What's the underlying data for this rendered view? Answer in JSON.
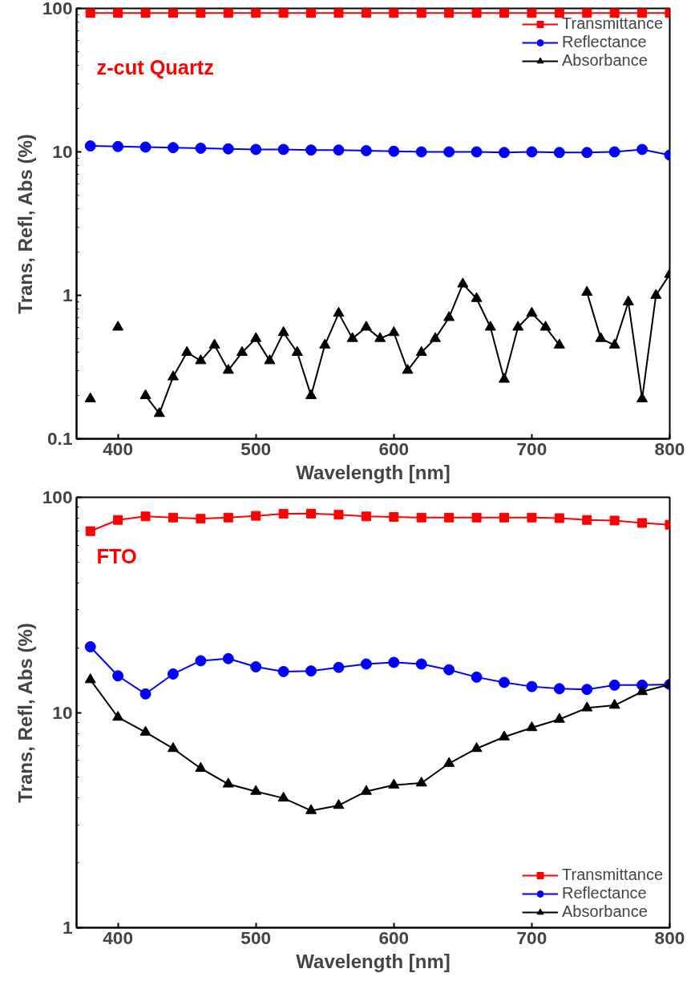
{
  "chart_data": [
    {
      "type": "line",
      "log": "y",
      "grid": false,
      "legend": "top right",
      "xlabel": "Wavelength [nm]",
      "ylabel": "Trans, Refl, Abs (%)",
      "annotations": [
        "z-cut Quartz"
      ],
      "xlim": [
        370,
        800
      ],
      "xticks": [
        400,
        500,
        600,
        700,
        800
      ],
      "ylim": [
        0.1,
        100
      ],
      "yticks": [
        0.1,
        1,
        10,
        100
      ],
      "line_style": "solid",
      "series": [
        {
          "name": "Transmittance",
          "color": "#ff0000",
          "marker": "square",
          "x": [
            380,
            400,
            420,
            440,
            460,
            480,
            500,
            520,
            540,
            560,
            580,
            600,
            620,
            640,
            660,
            680,
            700,
            720,
            740,
            760,
            780,
            800
          ],
          "values": [
            93,
            93,
            93,
            93,
            93,
            93,
            93,
            93,
            93,
            93,
            93,
            93,
            93,
            93,
            93,
            93,
            93,
            93,
            93,
            93,
            93,
            93
          ]
        },
        {
          "name": "Reflectance",
          "color": "#0000ff",
          "marker": "circle",
          "x": [
            380,
            400,
            420,
            440,
            460,
            480,
            500,
            520,
            540,
            560,
            580,
            600,
            620,
            640,
            660,
            680,
            700,
            720,
            740,
            760,
            780,
            800
          ],
          "values": [
            11.0,
            10.9,
            10.8,
            10.7,
            10.6,
            10.5,
            10.4,
            10.4,
            10.3,
            10.3,
            10.2,
            10.1,
            10.0,
            10.0,
            10.0,
            9.9,
            10.0,
            9.9,
            9.9,
            10.0,
            10.4,
            9.5
          ]
        },
        {
          "name": "Absorbance",
          "color": "#000000",
          "marker": "triangle",
          "x": [
            380,
            390,
            400,
            410,
            420,
            430,
            440,
            450,
            460,
            470,
            480,
            490,
            500,
            510,
            520,
            530,
            540,
            550,
            560,
            570,
            580,
            590,
            600,
            610,
            620,
            630,
            640,
            650,
            660,
            670,
            680,
            690,
            700,
            710,
            720,
            730,
            740,
            750,
            760,
            770,
            780,
            790,
            800
          ],
          "values": [
            0.19,
            null,
            0.6,
            null,
            0.2,
            0.15,
            0.27,
            0.4,
            0.35,
            0.45,
            0.3,
            0.4,
            0.5,
            0.35,
            0.55,
            0.4,
            0.2,
            0.45,
            0.75,
            0.5,
            0.6,
            0.5,
            0.55,
            0.3,
            0.4,
            0.5,
            0.7,
            1.2,
            0.95,
            0.6,
            0.26,
            0.6,
            0.75,
            0.6,
            0.45,
            null,
            1.05,
            0.5,
            0.45,
            0.9,
            0.19,
            1.0,
            1.4
          ]
        }
      ]
    },
    {
      "type": "line",
      "log": "y",
      "grid": false,
      "legend": "bottom right",
      "xlabel": "Wavelength [nm]",
      "ylabel": "Trans, Refl, Abs (%)",
      "annotations": [
        "FTO"
      ],
      "xlim": [
        370,
        800
      ],
      "xticks": [
        400,
        500,
        600,
        700,
        800
      ],
      "ylim": [
        1,
        100
      ],
      "yticks": [
        1,
        10,
        100
      ],
      "line_style": "solid",
      "series": [
        {
          "name": "Transmittance",
          "color": "#ff0000",
          "marker": "square",
          "x": [
            380,
            400,
            420,
            440,
            460,
            480,
            500,
            520,
            540,
            560,
            580,
            600,
            620,
            640,
            660,
            680,
            700,
            720,
            740,
            760,
            780,
            800
          ],
          "values": [
            69.6,
            78.5,
            81.5,
            80.5,
            79.5,
            80.5,
            82,
            83.8,
            84,
            83,
            81.5,
            81,
            80.5,
            80.5,
            80.5,
            80.5,
            80.5,
            80,
            78.5,
            78,
            76,
            74.6
          ]
        },
        {
          "name": "Reflectance",
          "color": "#0000ff",
          "marker": "circle",
          "x": [
            380,
            400,
            420,
            440,
            460,
            480,
            500,
            520,
            540,
            560,
            580,
            600,
            620,
            640,
            660,
            680,
            700,
            720,
            740,
            760,
            780,
            800
          ],
          "values": [
            20.2,
            14.8,
            12.2,
            15.1,
            17.4,
            17.8,
            16.3,
            15.5,
            15.6,
            16.2,
            16.8,
            17.1,
            16.8,
            15.8,
            14.6,
            13.8,
            13.2,
            12.9,
            12.8,
            13.4,
            13.4,
            13.5
          ]
        },
        {
          "name": "Absorbance",
          "color": "#000000",
          "marker": "triangle",
          "x": [
            380,
            400,
            420,
            440,
            460,
            480,
            500,
            520,
            540,
            560,
            580,
            600,
            620,
            640,
            660,
            680,
            700,
            720,
            740,
            760,
            780,
            800
          ],
          "values": [
            14.2,
            9.5,
            8.1,
            6.8,
            5.5,
            4.65,
            4.3,
            4.0,
            3.5,
            3.7,
            4.3,
            4.6,
            4.7,
            5.8,
            6.8,
            7.7,
            8.5,
            9.3,
            10.5,
            10.8,
            12.5,
            13.5
          ]
        }
      ]
    }
  ]
}
